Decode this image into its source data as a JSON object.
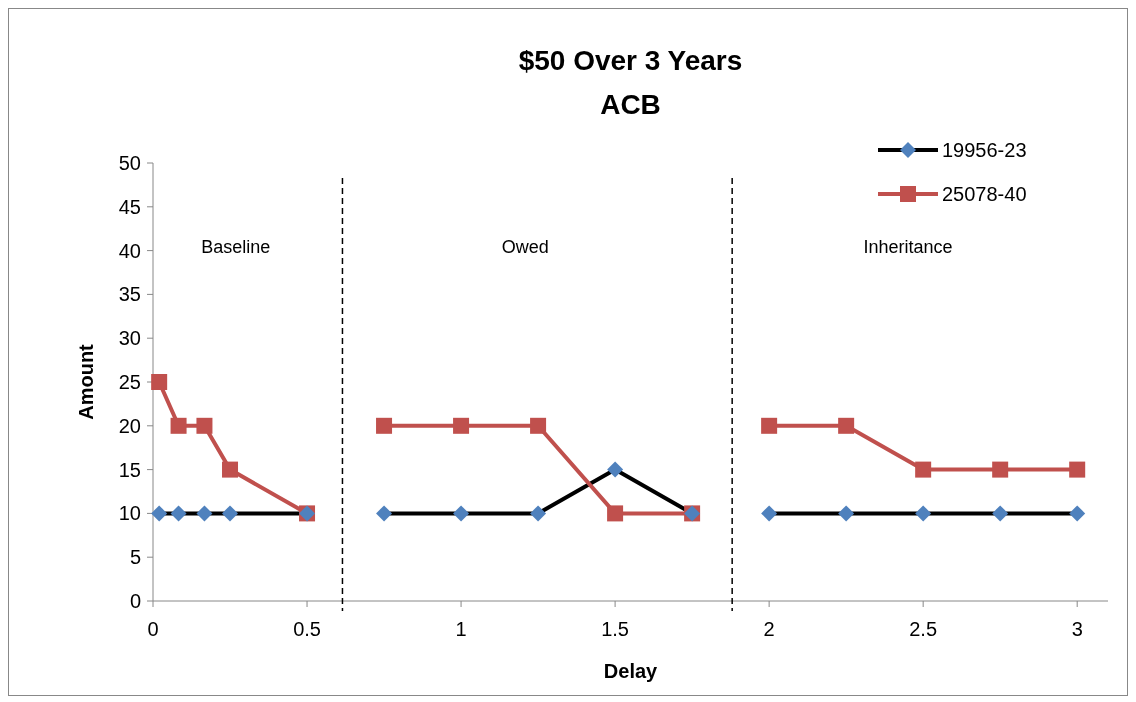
{
  "chart_data": {
    "type": "line",
    "title": "$50 Over 3 Years",
    "subtitle": "ACB",
    "xlabel": "Delay",
    "ylabel": "Amount",
    "x": [
      0.02,
      0.083,
      0.167,
      0.25,
      0.5,
      0.625,
      0.75,
      1,
      1.25,
      1.5,
      1.75,
      1.875,
      2,
      2.25,
      2.5,
      2.75,
      3
    ],
    "series": [
      {
        "name": "19956-23",
        "color": "#000000",
        "marker": "diamond",
        "colors": [
          "#4f81bd",
          "#4f81bd",
          "#4f81bd",
          "#4f81bd",
          "#4f81bd",
          null,
          "#4f81bd",
          "#4f81bd",
          "#4f81bd",
          "#4f81bd",
          "#4f81bd",
          null,
          "#4f81bd",
          "#4f81bd",
          "#4f81bd",
          "#4f81bd",
          "#4f81bd"
        ],
        "values": [
          10,
          10,
          10,
          10,
          10,
          null,
          10,
          10,
          10,
          15,
          10,
          null,
          10,
          10,
          10,
          10,
          10
        ]
      },
      {
        "name": "25078-40",
        "color": "#c0504d",
        "marker": "square",
        "values": [
          25,
          20,
          20,
          15,
          10,
          null,
          20,
          20,
          20,
          10,
          10,
          null,
          20,
          20,
          15,
          15,
          15
        ]
      }
    ],
    "xlim": [
      0,
      3.1
    ],
    "xticks": [
      0,
      0.5,
      1,
      1.5,
      2,
      2.5,
      3
    ],
    "ylim": [
      0,
      50
    ],
    "yticks": [
      0,
      5,
      10,
      15,
      20,
      25,
      30,
      35,
      40,
      45,
      50
    ],
    "grid": false,
    "legend": "top right",
    "line_style": "solid",
    "ref_lines": [
      {
        "axis": "x",
        "value": 0.615,
        "line_style": "dashed",
        "color": "#000000"
      },
      {
        "axis": "x",
        "value": 1.88,
        "line_style": "dashed",
        "color": "#000000"
      }
    ],
    "annotations": [
      "Baseline",
      "Owed",
      "Inheritance"
    ]
  }
}
